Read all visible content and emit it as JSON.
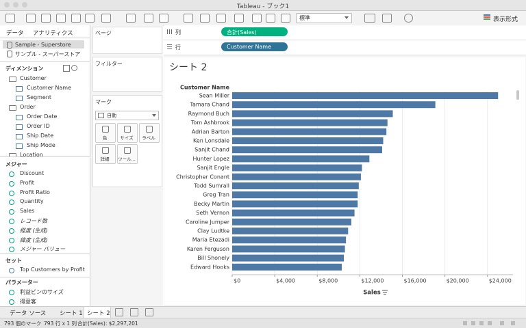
{
  "window_title": "Tableau - ブック1",
  "toolbar": {
    "view_size": "標準",
    "show_me": "表示形式"
  },
  "left_panel": {
    "tabs": [
      "データ",
      "アナリティクス"
    ],
    "data_sources": [
      "Sample - Superstore",
      "サンプル - スーパーストア"
    ],
    "dimensions": {
      "title": "ディメンション",
      "folders": [
        {
          "name": "Customer",
          "fields": [
            "Customer Name",
            "Segment"
          ]
        },
        {
          "name": "Order",
          "fields": [
            "Order Date",
            "Order ID",
            "Ship Date",
            "Ship Mode"
          ]
        },
        {
          "name": "Location",
          "fields": []
        }
      ]
    },
    "measures": {
      "title": "メジャー",
      "items": [
        "Discount",
        "Profit",
        "Profit Ratio",
        "Quantity",
        "Sales",
        "レコード数",
        "経度 (生成)",
        "緯度 (生成)",
        "メジャー バリュー"
      ]
    },
    "sets": {
      "title": "セット",
      "items": [
        "Top Customers by Profit"
      ]
    },
    "parameters": {
      "title": "パラメーター",
      "items": [
        "利益ビンのサイズ",
        "得意客"
      ]
    }
  },
  "cards": {
    "pages": "ページ",
    "filters": "フィルター",
    "marks": {
      "title": "マーク",
      "mark_type": "自動",
      "buttons": [
        "色",
        "サイズ",
        "ラベル",
        "詳細",
        "ツール..."
      ]
    }
  },
  "shelves": {
    "columns": {
      "label": "列",
      "pill": "合計(Sales)",
      "color": "#00b180"
    },
    "rows": {
      "label": "行",
      "pill": "Customer Name",
      "color": "#2f7397"
    }
  },
  "chart_data": {
    "type": "bar",
    "orientation": "horizontal",
    "title": "シート 2",
    "category_header": "Customer Name",
    "xlabel": "Sales",
    "categories": [
      "Sean Miller",
      "Tamara Chand",
      "Raymond Buch",
      "Tom Ashbrook",
      "Adrian Barton",
      "Ken Lonsdale",
      "Sanjit Chand",
      "Hunter Lopez",
      "Sanjit Engle",
      "Christopher Conant",
      "Todd Sumrall",
      "Greg Tran",
      "Becky Martin",
      "Seth Vernon",
      "Caroline Jumper",
      "Clay Ludtke",
      "Maria Etezadi",
      "Karen Ferguson",
      "Bill Shonely",
      "Edward Hooks"
    ],
    "values": [
      25000,
      19100,
      15100,
      14600,
      14500,
      14200,
      14100,
      12900,
      12200,
      12100,
      11900,
      11800,
      11800,
      11500,
      11200,
      10900,
      10700,
      10600,
      10500,
      10300
    ],
    "color": "#4e79a7",
    "xlim": [
      0,
      26400
    ],
    "xticks": [
      {
        "value": 0,
        "label": "$0"
      },
      {
        "value": 4000,
        "label": "$4,000"
      },
      {
        "value": 8000,
        "label": "$8,000"
      },
      {
        "value": 12000,
        "label": "$12,000"
      },
      {
        "value": 16000,
        "label": "$16,000"
      },
      {
        "value": 20000,
        "label": "$20,000"
      },
      {
        "value": 24000,
        "label": "$24,000"
      }
    ],
    "grid": true
  },
  "sheet_tabs": [
    "データ ソース",
    "シート 1",
    "シート 2"
  ],
  "active_sheet": 2,
  "status_bar": [
    "793 個のマーク",
    "793 行 x 1 列",
    "合計(Sales): $2,297,201"
  ]
}
